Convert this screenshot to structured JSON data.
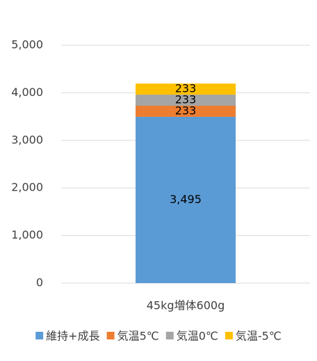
{
  "chart_data": {
    "type": "stacked-bar",
    "categories": [
      "45kg増体600g"
    ],
    "series": [
      {
        "name": "維持+成長",
        "color": "#5b9bd5",
        "values": [
          3495
        ],
        "value_labels": [
          "3,495"
        ]
      },
      {
        "name": "気温5℃",
        "color": "#ed7d31",
        "values": [
          233
        ]
      },
      {
        "name": "気温0℃",
        "color": "#a5a5a5",
        "values": [
          233
        ]
      },
      {
        "name": "気温-5℃",
        "color": "#ffc000",
        "values": [
          233
        ]
      }
    ],
    "ylim": [
      0,
      5000
    ],
    "yticks": [
      0,
      {
        "value": 1000,
        "label": "1,000"
      },
      {
        "value": 2000,
        "label": "2,000"
      },
      {
        "value": 3000,
        "label": "3,000"
      },
      {
        "value": 4000,
        "label": "4,000"
      },
      {
        "value": 5000,
        "label": "5,000"
      }
    ],
    "grid": true,
    "legend": "bottom"
  }
}
